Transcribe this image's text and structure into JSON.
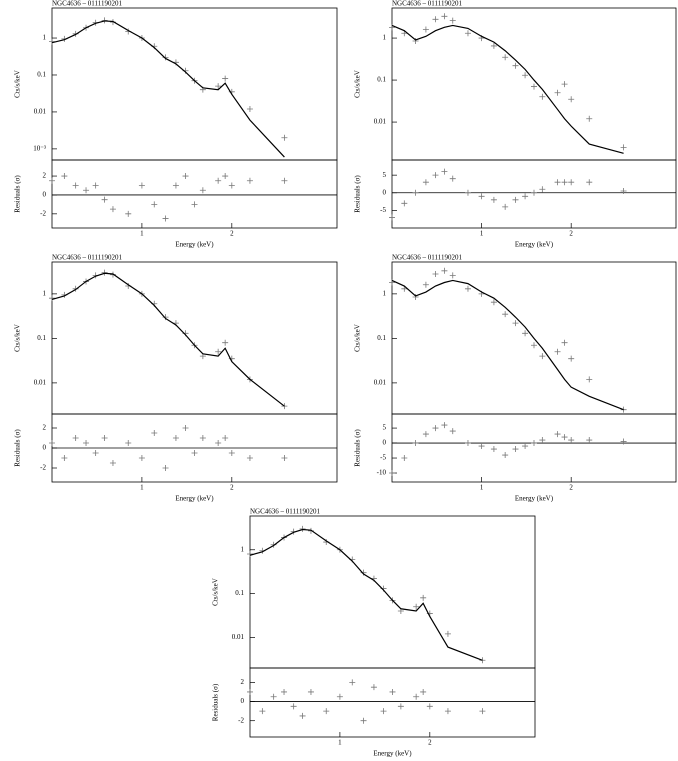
{
  "chart_data": [
    {
      "type": "line",
      "title": "NGC4636 – 0111190201",
      "ylabel": "Cts/s/keV",
      "ylog": true,
      "xlog": true,
      "xlim": [
        0.5,
        4.5
      ],
      "ylim": [
        0.0005,
        6.5
      ],
      "yticks": [
        {
          "value": 0.001,
          "label": "10⁻³"
        },
        0.01,
        0.1,
        1
      ],
      "x": [
        0.5,
        0.55,
        0.6,
        0.65,
        0.7,
        0.75,
        0.8,
        0.9,
        1.0,
        1.1,
        1.2,
        1.3,
        1.4,
        1.5,
        1.6,
        1.8,
        1.9,
        2.0,
        2.3,
        3.0
      ],
      "series": [
        {
          "color": "#777777",
          "values": [
            0.8,
            0.95,
            1.3,
            1.9,
            2.6,
            3.0,
            2.7,
            1.5,
            1.0,
            0.6,
            0.3,
            0.22,
            0.13,
            0.07,
            0.04,
            0.05,
            0.08,
            0.035,
            0.012,
            0.002
          ]
        },
        {
          "color": "#000000",
          "values": [
            0.75,
            0.9,
            1.25,
            1.9,
            2.5,
            2.9,
            2.8,
            1.6,
            1.0,
            0.55,
            0.28,
            0.2,
            0.12,
            0.07,
            0.045,
            0.04,
            0.06,
            0.03,
            0.006,
            0.0006
          ]
        }
      ]
    },
    {
      "type": "scatter",
      "xlabel": "Energy (keV)",
      "ylabel": "Residuals (σ)",
      "xlog": true,
      "xlim": [
        0.5,
        4.5
      ],
      "ylim": [
        -3.5,
        3.7
      ],
      "xticks": [
        1,
        2
      ],
      "yticks": [
        -2,
        0,
        2
      ],
      "hlines": [
        0
      ],
      "x": [
        0.5,
        0.55,
        0.6,
        0.65,
        0.7,
        0.75,
        0.8,
        0.9,
        1.0,
        1.1,
        1.2,
        1.3,
        1.4,
        1.5,
        1.6,
        1.8,
        1.9,
        2.0,
        2.3,
        3.0
      ],
      "series": [
        {
          "color": "#777777",
          "values": [
            1.5,
            2,
            1,
            0.5,
            1,
            -0.5,
            -1.5,
            -2,
            1,
            -1,
            -2.5,
            1,
            2,
            -1,
            0.5,
            1.5,
            2,
            1,
            1.5,
            1.5
          ]
        }
      ]
    },
    {
      "type": "line",
      "title": "NGC4636 – 0111190201",
      "ylabel": "Cts/s/keV",
      "ylog": true,
      "xlog": true,
      "xlim": [
        0.5,
        4.5
      ],
      "ylim": [
        0.00125,
        5.2
      ],
      "yticks": [
        0.01,
        0.1,
        1
      ],
      "x": [
        0.5,
        0.55,
        0.6,
        0.65,
        0.7,
        0.75,
        0.8,
        0.9,
        1.0,
        1.1,
        1.2,
        1.3,
        1.4,
        1.5,
        1.6,
        1.8,
        1.9,
        2.0,
        2.3,
        3.0
      ],
      "series": [
        {
          "color": "#777777",
          "values": [
            1.8,
            1.3,
            0.85,
            1.6,
            2.8,
            3.3,
            2.6,
            1.3,
            1.0,
            0.65,
            0.35,
            0.22,
            0.13,
            0.07,
            0.04,
            0.05,
            0.08,
            0.035,
            0.012,
            0.0025
          ]
        },
        {
          "color": "#000000",
          "values": [
            2.0,
            1.5,
            0.9,
            1.1,
            1.5,
            1.8,
            2.0,
            1.7,
            1.1,
            0.8,
            0.5,
            0.3,
            0.18,
            0.1,
            0.06,
            0.02,
            0.012,
            0.008,
            0.003,
            0.0018
          ]
        }
      ]
    },
    {
      "type": "scatter",
      "xlabel": "Energy (keV)",
      "ylabel": "Residuals (σ)",
      "xlog": true,
      "xlim": [
        0.5,
        4.5
      ],
      "ylim": [
        -10,
        9.3
      ],
      "xticks": [
        1,
        2
      ],
      "yticks": [
        -5,
        0,
        5
      ],
      "hlines": [
        0
      ],
      "x": [
        0.5,
        0.55,
        0.6,
        0.65,
        0.7,
        0.75,
        0.8,
        0.9,
        1.0,
        1.1,
        1.2,
        1.3,
        1.4,
        1.5,
        1.6,
        1.8,
        1.9,
        2.0,
        2.3,
        3.0
      ],
      "series": [
        {
          "color": "#777777",
          "values": [
            -7,
            -3,
            0,
            3,
            5,
            6,
            4,
            0,
            -1,
            -2,
            -4,
            -2,
            -1,
            0,
            1,
            3,
            3,
            3,
            3,
            0.5
          ]
        }
      ]
    },
    {
      "type": "line",
      "title": "NGC4636 – 0111190201",
      "ylabel": "Cts/s/keV",
      "ylog": true,
      "xlog": true,
      "xlim": [
        0.5,
        4.5
      ],
      "ylim": [
        0.002,
        5.2
      ],
      "yticks": [
        0.01,
        0.1,
        1
      ],
      "x": [
        0.5,
        0.55,
        0.6,
        0.65,
        0.7,
        0.75,
        0.8,
        0.9,
        1.0,
        1.1,
        1.2,
        1.3,
        1.4,
        1.5,
        1.6,
        1.8,
        1.9,
        2.0,
        2.3,
        3.0
      ],
      "series": [
        {
          "color": "#777777",
          "values": [
            0.8,
            0.95,
            1.3,
            1.9,
            2.6,
            3.0,
            2.7,
            1.5,
            1.0,
            0.6,
            0.3,
            0.22,
            0.13,
            0.07,
            0.04,
            0.05,
            0.08,
            0.035,
            0.012,
            0.003
          ]
        },
        {
          "color": "#000000",
          "values": [
            0.75,
            0.9,
            1.25,
            1.9,
            2.5,
            2.9,
            2.8,
            1.6,
            1.0,
            0.55,
            0.28,
            0.2,
            0.12,
            0.07,
            0.045,
            0.04,
            0.06,
            0.03,
            0.012,
            0.003
          ]
        }
      ]
    },
    {
      "type": "scatter",
      "xlabel": "Energy (keV)",
      "ylabel": "Residuals (σ)",
      "xlog": true,
      "xlim": [
        0.5,
        4.5
      ],
      "ylim": [
        -3.4,
        3.4
      ],
      "xticks": [
        1,
        2
      ],
      "yticks": [
        -2,
        0,
        2
      ],
      "hlines": [
        0
      ],
      "x": [
        0.5,
        0.55,
        0.6,
        0.65,
        0.7,
        0.75,
        0.8,
        0.9,
        1.0,
        1.1,
        1.2,
        1.3,
        1.4,
        1.5,
        1.6,
        1.8,
        1.9,
        2.0,
        2.3,
        3.0
      ],
      "series": [
        {
          "color": "#777777",
          "values": [
            0.5,
            -1,
            1,
            0.5,
            -0.5,
            1,
            -1.5,
            0.5,
            -1,
            1.5,
            -2,
            1,
            2,
            -0.5,
            1,
            0.5,
            1,
            -0.5,
            -1,
            -1
          ]
        }
      ]
    },
    {
      "type": "line",
      "title": "NGC4636 – 0111190201",
      "ylabel": "Cts/s/keV",
      "ylog": true,
      "xlog": true,
      "xlim": [
        0.5,
        4.5
      ],
      "ylim": [
        0.002,
        5.2
      ],
      "yticks": [
        0.01,
        0.1,
        1
      ],
      "x": [
        0.5,
        0.55,
        0.6,
        0.65,
        0.7,
        0.75,
        0.8,
        0.9,
        1.0,
        1.1,
        1.2,
        1.3,
        1.4,
        1.5,
        1.6,
        1.8,
        1.9,
        2.0,
        2.3,
        3.0
      ],
      "series": [
        {
          "color": "#777777",
          "values": [
            1.8,
            1.3,
            0.85,
            1.6,
            2.8,
            3.3,
            2.6,
            1.3,
            1.0,
            0.65,
            0.35,
            0.22,
            0.13,
            0.07,
            0.04,
            0.05,
            0.08,
            0.035,
            0.012,
            0.0025
          ]
        },
        {
          "color": "#000000",
          "values": [
            2.0,
            1.5,
            0.9,
            1.1,
            1.5,
            1.8,
            2.0,
            1.7,
            1.1,
            0.8,
            0.5,
            0.3,
            0.18,
            0.1,
            0.06,
            0.02,
            0.012,
            0.008,
            0.005,
            0.0025
          ]
        }
      ]
    },
    {
      "type": "scatter",
      "xlabel": "Energy (keV)",
      "ylabel": "Residuals (σ)",
      "xlog": true,
      "xlim": [
        0.5,
        4.5
      ],
      "ylim": [
        -13,
        9.7
      ],
      "xticks": [
        1,
        2
      ],
      "yticks": [
        -10,
        -5,
        0,
        5
      ],
      "hlines": [
        0
      ],
      "x": [
        0.5,
        0.55,
        0.6,
        0.65,
        0.7,
        0.75,
        0.8,
        0.9,
        1.0,
        1.1,
        1.2,
        1.3,
        1.4,
        1.5,
        1.6,
        1.8,
        1.9,
        2.0,
        2.3,
        3.0
      ],
      "series": [
        {
          "color": "#777777",
          "values": [
            -10,
            -5,
            0,
            3,
            5,
            6,
            4,
            0,
            -1,
            -2,
            -4,
            -2,
            -1,
            0,
            1,
            3,
            2,
            1,
            1,
            0.5
          ]
        }
      ]
    },
    {
      "type": "line",
      "title": "NGC4636 – 0111190201",
      "ylabel": "Cts/s/keV",
      "ylog": true,
      "xlog": true,
      "xlim": [
        0.5,
        4.5
      ],
      "ylim": [
        0.002,
        5.9
      ],
      "yticks": [
        0.01,
        0.1,
        1
      ],
      "x": [
        0.5,
        0.55,
        0.6,
        0.65,
        0.7,
        0.75,
        0.8,
        0.9,
        1.0,
        1.1,
        1.2,
        1.3,
        1.4,
        1.5,
        1.6,
        1.8,
        1.9,
        2.0,
        2.3,
        3.0
      ],
      "series": [
        {
          "color": "#777777",
          "values": [
            0.8,
            0.95,
            1.3,
            1.9,
            2.6,
            3.0,
            2.7,
            1.5,
            1.0,
            0.6,
            0.3,
            0.22,
            0.13,
            0.07,
            0.04,
            0.05,
            0.08,
            0.035,
            0.012,
            0.003
          ]
        },
        {
          "color": "#000000",
          "values": [
            0.75,
            0.9,
            1.25,
            1.9,
            2.5,
            2.9,
            2.8,
            1.6,
            1.0,
            0.55,
            0.28,
            0.2,
            0.12,
            0.07,
            0.045,
            0.04,
            0.06,
            0.03,
            0.006,
            0.003
          ]
        }
      ]
    },
    {
      "type": "scatter",
      "xlabel": "Energy (keV)",
      "ylabel": "Residuals (σ)",
      "xlog": true,
      "xlim": [
        0.5,
        4.5
      ],
      "ylim": [
        -3.7,
        3.5
      ],
      "xticks": [
        1,
        2
      ],
      "yticks": [
        -2,
        0,
        2
      ],
      "hlines": [
        0
      ],
      "x": [
        0.5,
        0.55,
        0.6,
        0.65,
        0.7,
        0.75,
        0.8,
        0.9,
        1.0,
        1.1,
        1.2,
        1.3,
        1.4,
        1.5,
        1.6,
        1.8,
        1.9,
        2.0,
        2.3,
        3.0
      ],
      "series": [
        {
          "color": "#777777",
          "values": [
            1,
            -1,
            0.5,
            1,
            -0.5,
            -1.5,
            1,
            -1,
            0.5,
            2,
            -2,
            1.5,
            -1,
            1,
            -0.5,
            0.5,
            1,
            -0.5,
            -1,
            -1
          ]
        }
      ]
    }
  ]
}
